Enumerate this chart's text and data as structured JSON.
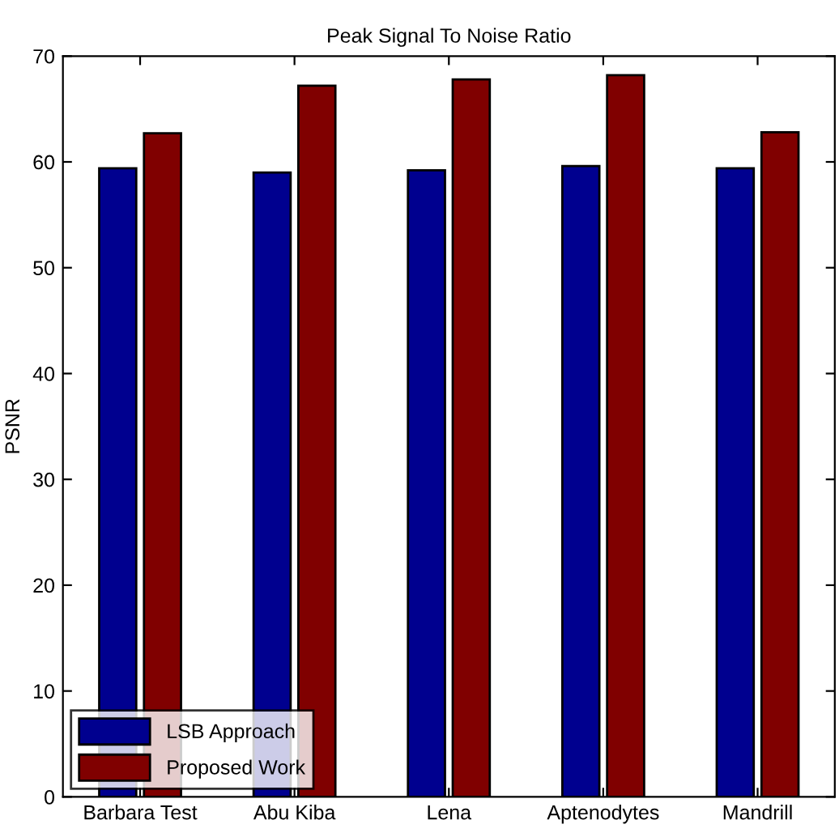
{
  "chart_data": {
    "type": "bar",
    "title": "Peak Signal To Noise Ratio",
    "ylabel": "PSNR",
    "categories": [
      "Barbara Test",
      "Abu Kiba",
      "Lena",
      "Aptenodytes",
      "Mandrill"
    ],
    "series": [
      {
        "name": "LSB Approach",
        "color": "#00008f",
        "values": [
          59.4,
          59.0,
          59.2,
          59.6,
          59.4
        ]
      },
      {
        "name": "Proposed Work",
        "color": "#800000",
        "values": [
          62.7,
          67.2,
          67.8,
          68.2,
          62.8
        ]
      }
    ],
    "ylim": [
      0,
      70
    ],
    "yticks": [
      0,
      10,
      20,
      30,
      40,
      50,
      60,
      70
    ],
    "grid": false,
    "legend": "bottom left"
  }
}
